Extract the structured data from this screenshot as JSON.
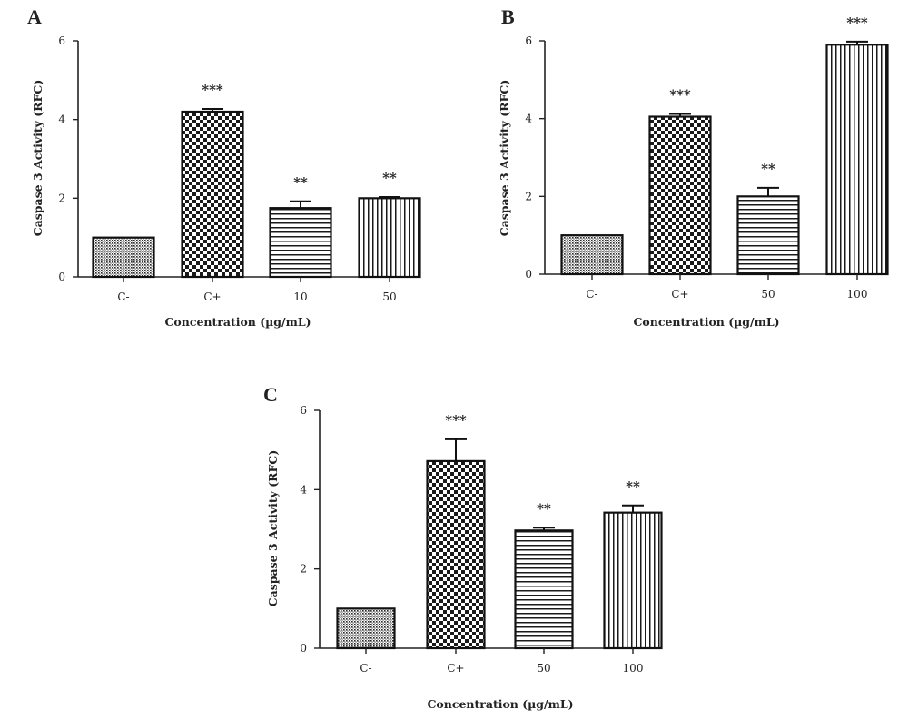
{
  "chart_data": [
    {
      "panel": "A",
      "type": "bar",
      "categories": [
        "C-",
        "C+",
        "10",
        "50"
      ],
      "values": [
        1.0,
        4.2,
        1.75,
        2.0
      ],
      "errors": [
        0,
        0.07,
        0.17,
        0.03
      ],
      "significance": [
        "",
        "***",
        "**",
        "**"
      ],
      "patterns": [
        "dots",
        "checker",
        "hlines",
        "vlines"
      ],
      "xlabel": "Concentration (µg/mL)",
      "ylabel": "Caspase 3 Activity (RFC)",
      "ylim": [
        0,
        6
      ],
      "yticks": [
        "0",
        "2",
        "4",
        "6"
      ],
      "grid": false
    },
    {
      "panel": "B",
      "type": "bar",
      "categories": [
        "C-",
        "C+",
        "50",
        "100"
      ],
      "values": [
        1.0,
        4.05,
        2.0,
        5.9
      ],
      "errors": [
        0,
        0.07,
        0.22,
        0.08
      ],
      "significance": [
        "",
        "***",
        "**",
        "***"
      ],
      "patterns": [
        "dots",
        "checker",
        "hlines",
        "vlines"
      ],
      "xlabel": "Concentration (µg/mL)",
      "ylabel": "Caspase 3 Activity (RFC)",
      "ylim": [
        0,
        6
      ],
      "yticks": [
        "0",
        "2",
        "4",
        "6"
      ],
      "grid": false
    },
    {
      "panel": "C",
      "type": "bar",
      "categories": [
        "C-",
        "C+",
        "50",
        "100"
      ],
      "values": [
        1.0,
        4.72,
        2.97,
        3.42
      ],
      "errors": [
        0,
        0.55,
        0.07,
        0.18
      ],
      "significance": [
        "",
        "***",
        "**",
        "**"
      ],
      "patterns": [
        "dots",
        "checker",
        "hlines",
        "vlines"
      ],
      "xlabel": "Concentration (µg/mL)",
      "ylabel": "Caspase 3 Activity (RFC)",
      "ylim": [
        0,
        6
      ],
      "yticks": [
        "0",
        "2",
        "4",
        "6"
      ],
      "grid": false
    }
  ]
}
